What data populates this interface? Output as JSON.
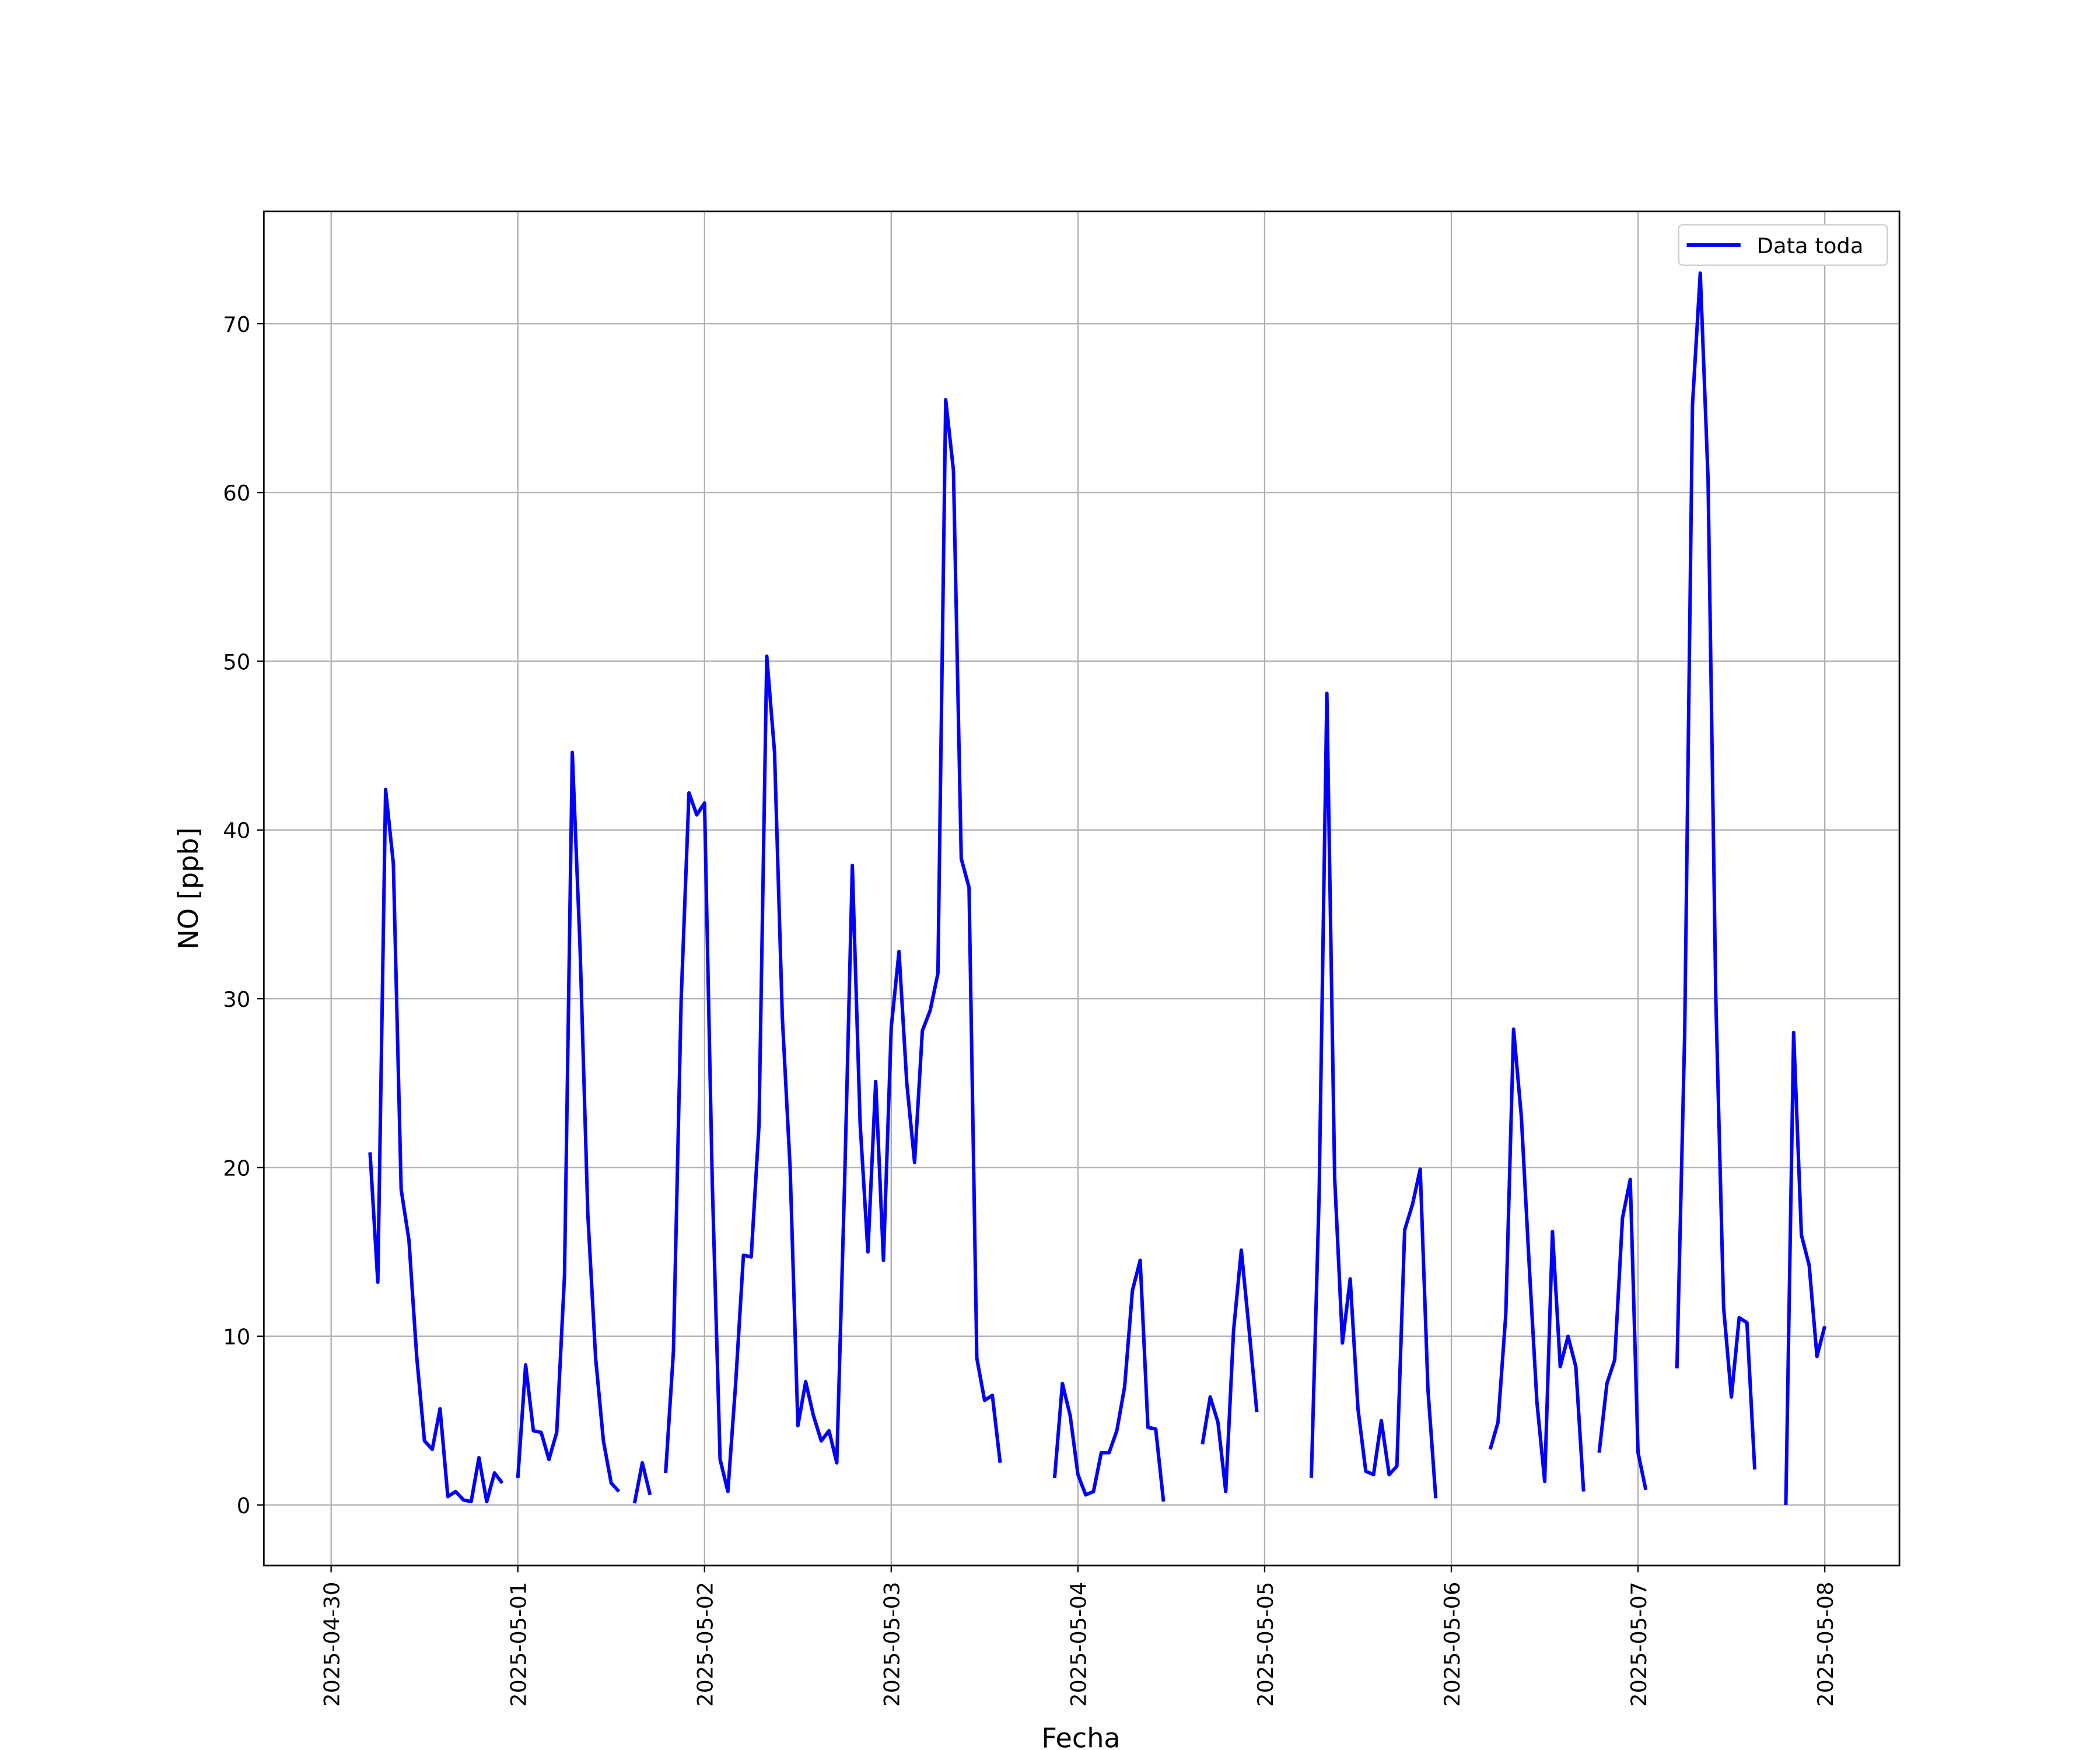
{
  "chart_data": {
    "type": "line",
    "xlabel": "Fecha",
    "ylabel": "NO [ppb]",
    "x": [
      5,
      6,
      7,
      8,
      9,
      10,
      11,
      12,
      13,
      14,
      15,
      16,
      17,
      18,
      19,
      20,
      21,
      22,
      23,
      24,
      25,
      26,
      27,
      28,
      29,
      30,
      31,
      32,
      33,
      34,
      35,
      36,
      37,
      38,
      39,
      40,
      41,
      42,
      43,
      44,
      45,
      46,
      47,
      48,
      49,
      50,
      51,
      52,
      53,
      54,
      55,
      56,
      57,
      58,
      59,
      60,
      61,
      62,
      63,
      64,
      65,
      66,
      67,
      68,
      69,
      70,
      71,
      72,
      73,
      74,
      75,
      76,
      77,
      78,
      79,
      80,
      81,
      82,
      83,
      84,
      85,
      86,
      87,
      88,
      89,
      90,
      91,
      92,
      93,
      94,
      95,
      96,
      97,
      98,
      99,
      100,
      101,
      102,
      103,
      104,
      105,
      106,
      107,
      108,
      109,
      110,
      111,
      112,
      113,
      114,
      115,
      116,
      117,
      118,
      119,
      120,
      121,
      122,
      123,
      124,
      125,
      126,
      127,
      128,
      129,
      130,
      131,
      132,
      133,
      134,
      135,
      136,
      137,
      138,
      139,
      140,
      141,
      142,
      143,
      144,
      145,
      146,
      147,
      148,
      149,
      150,
      151,
      152,
      153,
      154,
      155,
      156,
      157,
      158,
      159,
      160,
      161,
      162,
      163,
      164,
      165,
      166,
      167,
      168,
      169,
      170,
      171,
      172,
      173,
      174,
      175,
      176,
      177,
      178,
      179,
      180,
      181,
      182,
      183,
      184,
      185,
      186,
      187,
      188,
      189,
      190,
      191,
      192
    ],
    "series": [
      {
        "name": "Data toda",
        "color": "#0000ff",
        "values": [
          20.9,
          13.2,
          42.4,
          38,
          18.7,
          15.7,
          8.8,
          3.8,
          3.3,
          5.7,
          0.5,
          0.8,
          0.3,
          0.2,
          2.8,
          0.2,
          1.9,
          1.3,
          null,
          1.6,
          8.3,
          4.4,
          4.3,
          2.7,
          4.3,
          13.6,
          44.6,
          33,
          17.2,
          8.7,
          3.8,
          1.3,
          0.8,
          null,
          0.1,
          2.5,
          0.6,
          null,
          1.9,
          9.1,
          30,
          42.2,
          40.9,
          41.6,
          19,
          2.7,
          0.8,
          7.2,
          14.8,
          14.7,
          22.5,
          50.3,
          44.6,
          28.9,
          20,
          4.7,
          7.3,
          5.3,
          3.8,
          4.4,
          2.5,
          19,
          37.9,
          22.6,
          15,
          25.1,
          14.5,
          28.3,
          32.8,
          25,
          20.3,
          28.1,
          29.3,
          31.5,
          65.5,
          61.3,
          38.3,
          36.6,
          8.7,
          6.2,
          6.5,
          2.5,
          null,
          null,
          null,
          null,
          null,
          null,
          1.6,
          7.2,
          5.3,
          1.8,
          0.6,
          0.8,
          3.1,
          3.1,
          4.4,
          7,
          12.7,
          14.5,
          4.6,
          4.5,
          0.2,
          null,
          null,
          null,
          null,
          3.6,
          6.4,
          4.9,
          0.8,
          10.3,
          15.1,
          10.4,
          5.5,
          null,
          null,
          null,
          null,
          null,
          null,
          1.6,
          18.3,
          48.1,
          19.4,
          9.6,
          13.4,
          5.7,
          2,
          1.8,
          5,
          1.8,
          2.3,
          16.3,
          17.8,
          19.9,
          6.8,
          0.4,
          null,
          null,
          null,
          null,
          null,
          null,
          3.3,
          4.9,
          11.3,
          28.2,
          23,
          14.3,
          6.1,
          1.4,
          16.2,
          8.2,
          10,
          8.2,
          0.8,
          null,
          3.1,
          7.2,
          8.6,
          17,
          19.3,
          3.1,
          0.9,
          null,
          null,
          null,
          8.1,
          28,
          65.2,
          73,
          60.8,
          30,
          11.7,
          6.4,
          11.1,
          10.8,
          2.1,
          null,
          null,
          null,
          0,
          28,
          16,
          14.2,
          8.8,
          10.6
        ]
      }
    ],
    "xlim": [
      -8.65,
      201.6
    ],
    "ylim": [
      -3.59,
      76.66
    ],
    "xticks": [
      {
        "value": 0,
        "label": "2025-04-30"
      },
      {
        "value": 24,
        "label": "2025-05-01"
      },
      {
        "value": 48,
        "label": "2025-05-02"
      },
      {
        "value": 72,
        "label": "2025-05-03"
      },
      {
        "value": 96,
        "label": "2025-05-04"
      },
      {
        "value": 120,
        "label": "2025-05-05"
      },
      {
        "value": 144,
        "label": "2025-05-06"
      },
      {
        "value": 168,
        "label": "2025-05-07"
      },
      {
        "value": 192,
        "label": "2025-05-08"
      }
    ],
    "yticks": [
      0,
      10,
      20,
      30,
      40,
      50,
      60,
      70
    ],
    "grid": true,
    "legend": "upper right"
  }
}
